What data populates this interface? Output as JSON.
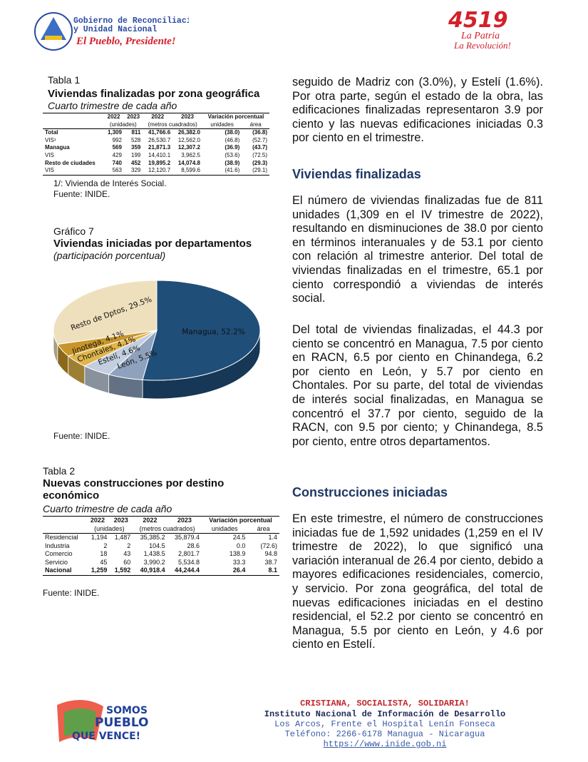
{
  "header": {
    "gov_line1": "Gobierno de Reconciliación",
    "gov_line2": "y Unidad Nacional",
    "slogan": "El Pueblo, Presidente!",
    "logo_number": "4519",
    "logo_line1": "La Patria",
    "logo_line2": "La Revolución!"
  },
  "table1": {
    "caption": "Tabla 1",
    "title": "Viviendas finalizadas por zona geográfica",
    "subtitle": "Cuarto trimestre de cada año",
    "columns": [
      "2022",
      "2023",
      "2022",
      "2023",
      "Variación porcentual"
    ],
    "units": [
      "(unidades)",
      "(metros cuadrados)",
      "unidades",
      "área"
    ],
    "rows": [
      [
        "Total",
        "1,309",
        "811",
        "41,766.6",
        "26,382.0",
        "(38.0)",
        "(36.8)"
      ],
      [
        "VIS¹",
        "992",
        "528",
        "26,530.7",
        "12,562.0",
        "(46.8)",
        "(52.7)"
      ],
      [
        "Managua",
        "569",
        "359",
        "21,871.3",
        "12,307.2",
        "(36.9)",
        "(43.7)"
      ],
      [
        "VIS",
        "429",
        "199",
        "14,410.1",
        "3,962.5",
        "(53.6)",
        "(72.5)"
      ],
      [
        "Resto de ciudades",
        "740",
        "452",
        "19,895.2",
        "14,074.8",
        "(38.9)",
        "(29.3)"
      ],
      [
        "VIS",
        "563",
        "329",
        "12,120.7",
        "8,599.6",
        "(41.6)",
        "(29.1)"
      ]
    ],
    "bold_rows": [
      0,
      2,
      4
    ],
    "note": "1/: Vivienda de Interés Social.",
    "source": "Fuente: INIDE."
  },
  "figure": {
    "caption": "Gráfico 7",
    "title": "Viviendas iniciadas por departamentos",
    "subtitle": "(participación porcentual)",
    "source": "Fuente: INIDE."
  },
  "chart_data": {
    "type": "pie",
    "values": [
      52.2,
      5.5,
      4.6,
      4.1,
      4.1,
      29.5
    ],
    "value_labels": [
      "Managua, 52.2%",
      "León, 5.5%",
      "Estelí, 4.6%",
      "Chontales, 4.1%",
      "Jinotega, 4.1%",
      "Resto de Dptos, 29.5%"
    ],
    "colors": [
      "#1f4e79",
      "#8ea2bd",
      "#c3cfe0",
      "#e0b54a",
      "#c8952a",
      "#efe0bd"
    ]
  },
  "table2": {
    "caption": "Tabla 2",
    "title": "Nuevas construcciones por destino económico",
    "subtitle": "Cuarto trimestre de cada año",
    "columns": [
      "2022",
      "2023",
      "2022",
      "2023",
      "Variación porcentual"
    ],
    "units": [
      "(unidades)",
      "(metros cuadrados)",
      "unidades",
      "área"
    ],
    "rows": [
      [
        "Residencial",
        "1,194",
        "1,487",
        "35,385.2",
        "35,879.4",
        "24.5",
        "1.4"
      ],
      [
        "Industria",
        "2",
        "2",
        "104.5",
        "28.6",
        "0.0",
        "(72.6)"
      ],
      [
        "Comercio",
        "18",
        "43",
        "1,438.5",
        "2,801.7",
        "138.9",
        "94.8"
      ],
      [
        "Servicio",
        "45",
        "60",
        "3,990.2",
        "5,534.8",
        "33.3",
        "38.7"
      ],
      [
        "Nacional",
        "1,259",
        "1,592",
        "40,918.4",
        "44,244.4",
        "26.4",
        "8.1"
      ]
    ],
    "bold_rows": [
      4
    ],
    "source": "Fuente: INIDE."
  },
  "body": {
    "paragraph1": "seguido de Madriz con (3.0%), y Estelí (1.6%). Por otra parte, según el estado de la obra, las edificaciones finalizadas representaron 3.9 por ciento y las nuevas edificaciones iniciadas 0.3 por ciento en el trimestre.",
    "heading1": "Viviendas finalizadas",
    "paragraph2": "El número de viviendas finalizadas fue de 811 unidades (1,309 en el IV trimestre de 2022), resultando en disminuciones de 38.0 por ciento en términos interanuales y de 53.1 por ciento con relación al trimestre anterior. Del total de viviendas finalizadas en el trimestre, 65.1 por ciento correspondió a viviendas de interés social.",
    "paragraph3": "Del total de viviendas finalizadas, el 44.3 por ciento se concentró en Managua, 7.5 por ciento en RACN, 6.5 por ciento en Chinandega, 6.2 por ciento en León, y 5.7 por ciento en Chontales. Por su parte, del total de viviendas de interés social finalizadas, en Managua se concentró el 37.7 por ciento, seguido de la RACN, con 9.5 por ciento; y Chinandega, 8.5 por ciento, entre otros departamentos.",
    "heading2": "Construcciones iniciadas",
    "paragraph4": "En este trimestre, el número de construcciones iniciadas fue de 1,592 unidades (1,259 en el IV trimestre de 2022), lo que significó una variación interanual de 26.4 por ciento, debido a mayores edificaciones residenciales, comercio, y servicio. Por zona geográfica, del total de nuevas edificaciones iniciadas en el destino residencial, el 52.2 por ciento se concentró en Managua, 5.5 por ciento en León, y 4.6 por ciento en Estelí."
  },
  "footer": {
    "logo_line1": "SOMOS",
    "logo_line2": "PUEBLO",
    "logo_line3": "QUE VENCE!",
    "motto": "CRISTIANA, SOCIALISTA, SOLIDARIA!",
    "institute": "Instituto Nacional de Información de Desarrollo",
    "address": "Los Arcos, Frente el Hospital Lenín Fonseca",
    "phone": "Teléfono: 2266-6178 Managua - Nicaragua",
    "url": "https://www.inide.gob.ni"
  }
}
